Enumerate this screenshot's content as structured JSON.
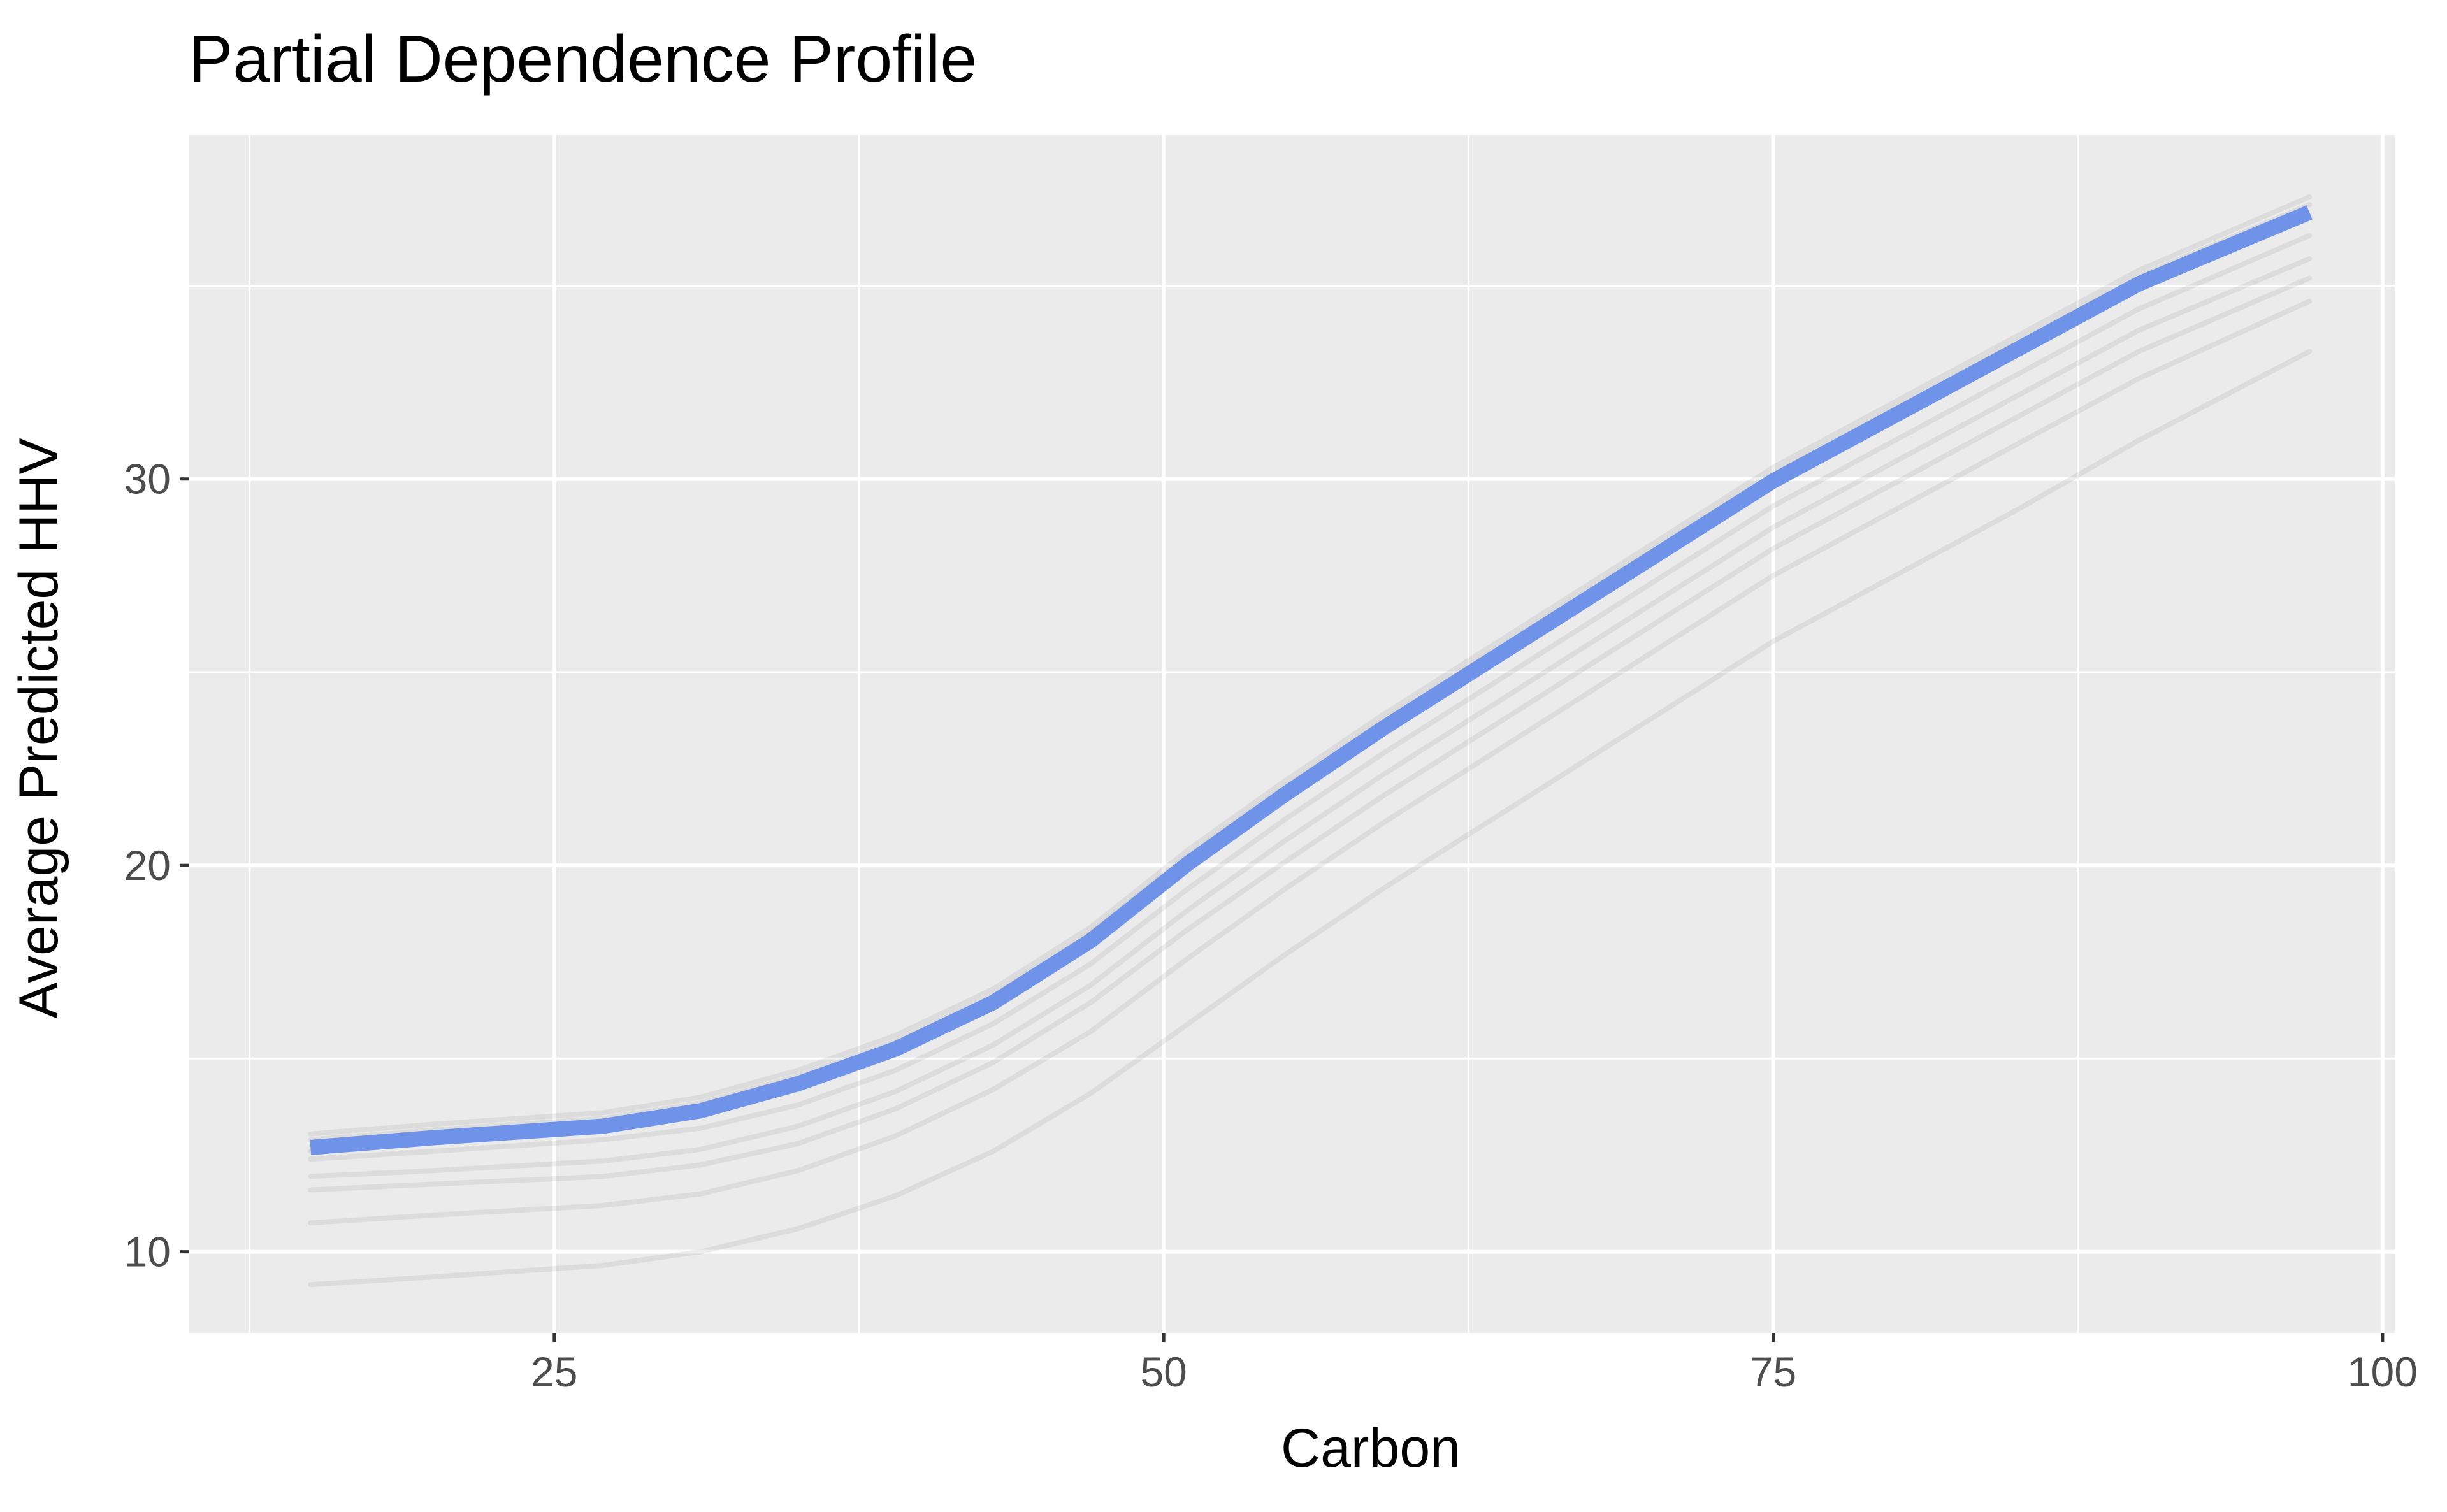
{
  "chart_data": {
    "type": "line",
    "title": "Partial Dependence Profile",
    "xlabel": "Carbon",
    "ylabel": "Average Predicted HHV",
    "xlim": [
      10,
      100.5
    ],
    "ylim": [
      7.9,
      38.9
    ],
    "x_ticks": [
      25,
      50,
      75,
      100
    ],
    "x_minor_ticks": [
      12.5,
      37.5,
      62.5,
      87.5
    ],
    "y_ticks": [
      10,
      20,
      30
    ],
    "y_minor_ticks": [
      15,
      25,
      35
    ],
    "grid": true,
    "legend": "none",
    "colors": {
      "panel_background": "#ebebeb",
      "grid": "#ffffff",
      "profile_lines": "#999999",
      "average_line": "#6f93e8"
    },
    "x": [
      15,
      20,
      27,
      31,
      35,
      39,
      43,
      47,
      51,
      55,
      59,
      63,
      67,
      71,
      75,
      80,
      85,
      90,
      97
    ],
    "series": [
      {
        "values": [
          13.05,
          13.3,
          13.6,
          14.0,
          14.7,
          15.6,
          16.8,
          18.4,
          20.4,
          22.2,
          23.9,
          25.5,
          27.1,
          28.7,
          30.3,
          32.0,
          33.7,
          35.4,
          37.3
        ]
      },
      {
        "values": [
          12.9,
          13.15,
          13.45,
          13.85,
          14.55,
          15.45,
          16.65,
          18.25,
          20.25,
          22.05,
          23.75,
          25.35,
          26.95,
          28.55,
          30.15,
          31.85,
          33.55,
          35.25,
          37.1
        ]
      },
      {
        "values": [
          12.6,
          12.85,
          13.15,
          13.55,
          14.2,
          15.1,
          16.3,
          17.9,
          19.9,
          21.7,
          23.4,
          25.0,
          26.6,
          28.2,
          29.8,
          31.5,
          33.2,
          34.9,
          36.8
        ]
      },
      {
        "values": [
          12.4,
          12.6,
          12.9,
          13.2,
          13.8,
          14.7,
          15.9,
          17.45,
          19.4,
          21.2,
          22.9,
          24.5,
          26.1,
          27.7,
          29.3,
          31.0,
          32.7,
          34.4,
          36.3
        ]
      },
      {
        "values": [
          11.95,
          12.1,
          12.35,
          12.65,
          13.25,
          14.15,
          15.35,
          16.9,
          18.85,
          20.65,
          22.35,
          23.95,
          25.55,
          27.15,
          28.75,
          30.45,
          32.15,
          33.85,
          35.7
        ]
      },
      {
        "values": [
          11.6,
          11.75,
          11.95,
          12.25,
          12.8,
          13.7,
          14.9,
          16.45,
          18.35,
          20.1,
          21.8,
          23.4,
          25.0,
          26.6,
          28.2,
          29.9,
          31.6,
          33.3,
          35.2
        ]
      },
      {
        "values": [
          10.75,
          10.95,
          11.2,
          11.5,
          12.1,
          13.0,
          14.2,
          15.7,
          17.6,
          19.4,
          21.1,
          22.7,
          24.3,
          25.9,
          27.5,
          29.2,
          30.9,
          32.6,
          34.6
        ]
      },
      {
        "values": [
          9.15,
          9.35,
          9.65,
          10.0,
          10.6,
          11.45,
          12.6,
          14.1,
          15.9,
          17.7,
          19.4,
          21.0,
          22.6,
          24.2,
          25.8,
          27.5,
          29.2,
          31.0,
          33.3
        ]
      },
      {
        "values": [
          12.7,
          12.95,
          13.25,
          13.65,
          14.35,
          15.25,
          16.45,
          18.05,
          20.05,
          21.85,
          23.55,
          25.15,
          26.75,
          28.35,
          29.95,
          31.65,
          33.35,
          35.05,
          36.9
        ]
      }
    ],
    "average_series_index": 8
  }
}
